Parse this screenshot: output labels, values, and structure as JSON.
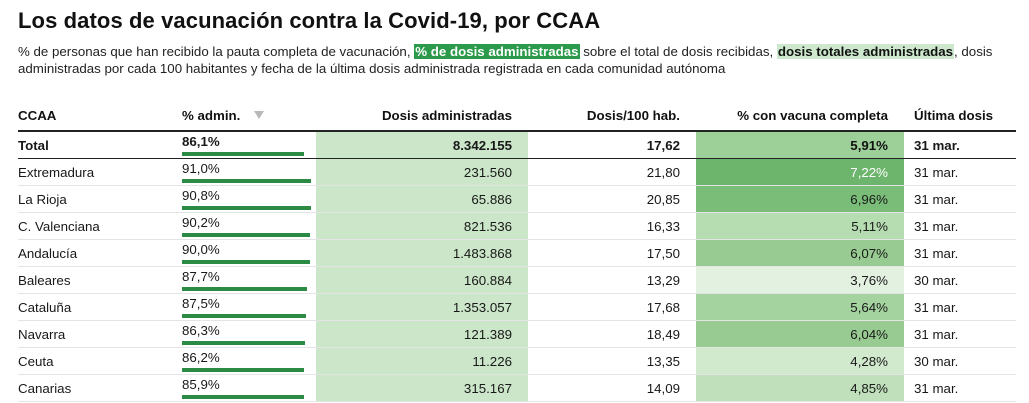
{
  "title": "Los datos de vacunación contra la Covid-19, por CCAA",
  "description": {
    "part1": "% de personas que han recibido la pauta completa de vacunación, ",
    "highlight_dark": "% de dosis administradas",
    "part2": " sobre el total de dosis recibidas, ",
    "highlight_light": "dosis totales administradas",
    "part3": ", dosis administradas por cada 100 habitantes y fecha de la última dosis administrada registrada en cada comunidad autónoma"
  },
  "colors": {
    "bar_green": "#2b8a44",
    "dosis_fill": "#cbe6c8",
    "highlight_dark": "#2b9a4b",
    "highlight_light": "#cde8cd"
  },
  "table": {
    "headers": {
      "ccaa": "CCAA",
      "pct_admin": "% admin.",
      "dosis": "Dosis administradas",
      "dosis_100": "Dosis/100 hab.",
      "pct_completa": "% con vacuna completa",
      "ultima": "Última dosis"
    },
    "sort_icon": "sort-descending-triangle",
    "rows": [
      {
        "ccaa": "Total",
        "pct_admin": "86,1%",
        "pct_value": 86.1,
        "dosis": "8.342.155",
        "dosis_100": "17,62",
        "pct_completa": "5,91%",
        "completa_value": 5.91,
        "ultima": "31 mar.",
        "bg": "#9dcf98",
        "fg": "#111111",
        "is_total": true
      },
      {
        "ccaa": "Extremadura",
        "pct_admin": "91,0%",
        "pct_value": 91.0,
        "dosis": "231.560",
        "dosis_100": "21,80",
        "pct_completa": "7,22%",
        "completa_value": 7.22,
        "ultima": "31 mar.",
        "bg": "#6db56c",
        "fg": "#ffffff"
      },
      {
        "ccaa": "La Rioja",
        "pct_admin": "90,8%",
        "pct_value": 90.8,
        "dosis": "65.886",
        "dosis_100": "20,85",
        "pct_completa": "6,96%",
        "completa_value": 6.96,
        "ultima": "31 mar.",
        "bg": "#7abd78",
        "fg": "#1a1a1a"
      },
      {
        "ccaa": "C. Valenciana",
        "pct_admin": "90,2%",
        "pct_value": 90.2,
        "dosis": "821.536",
        "dosis_100": "16,33",
        "pct_completa": "5,11%",
        "completa_value": 5.11,
        "ultima": "31 mar.",
        "bg": "#b6dcb1",
        "fg": "#1a1a1a"
      },
      {
        "ccaa": "Andalucía",
        "pct_admin": "90,0%",
        "pct_value": 90.0,
        "dosis": "1.483.868",
        "dosis_100": "17,50",
        "pct_completa": "6,07%",
        "completa_value": 6.07,
        "ultima": "31 mar.",
        "bg": "#97cb91",
        "fg": "#1a1a1a"
      },
      {
        "ccaa": "Baleares",
        "pct_admin": "87,7%",
        "pct_value": 87.7,
        "dosis": "160.884",
        "dosis_100": "13,29",
        "pct_completa": "3,76%",
        "completa_value": 3.76,
        "ultima": "30 mar.",
        "bg": "#e3f1e0",
        "fg": "#1a1a1a"
      },
      {
        "ccaa": "Cataluña",
        "pct_admin": "87,5%",
        "pct_value": 87.5,
        "dosis": "1.353.057",
        "dosis_100": "17,68",
        "pct_completa": "5,64%",
        "completa_value": 5.64,
        "ultima": "31 mar.",
        "bg": "#a5d39f",
        "fg": "#1a1a1a"
      },
      {
        "ccaa": "Navarra",
        "pct_admin": "86,3%",
        "pct_value": 86.3,
        "dosis": "121.389",
        "dosis_100": "18,49",
        "pct_completa": "6,04%",
        "completa_value": 6.04,
        "ultima": "31 mar.",
        "bg": "#98cb92",
        "fg": "#1a1a1a"
      },
      {
        "ccaa": "Ceuta",
        "pct_admin": "86,2%",
        "pct_value": 86.2,
        "dosis": "11.226",
        "dosis_100": "13,35",
        "pct_completa": "4,28%",
        "completa_value": 4.28,
        "ultima": "30 mar.",
        "bg": "#d1e9cd",
        "fg": "#1a1a1a"
      },
      {
        "ccaa": "Canarias",
        "pct_admin": "85,9%",
        "pct_value": 85.9,
        "dosis": "315.167",
        "dosis_100": "14,09",
        "pct_completa": "4,85%",
        "completa_value": 4.85,
        "ultima": "31 mar.",
        "bg": "#bfe0ba",
        "fg": "#1a1a1a"
      }
    ]
  }
}
